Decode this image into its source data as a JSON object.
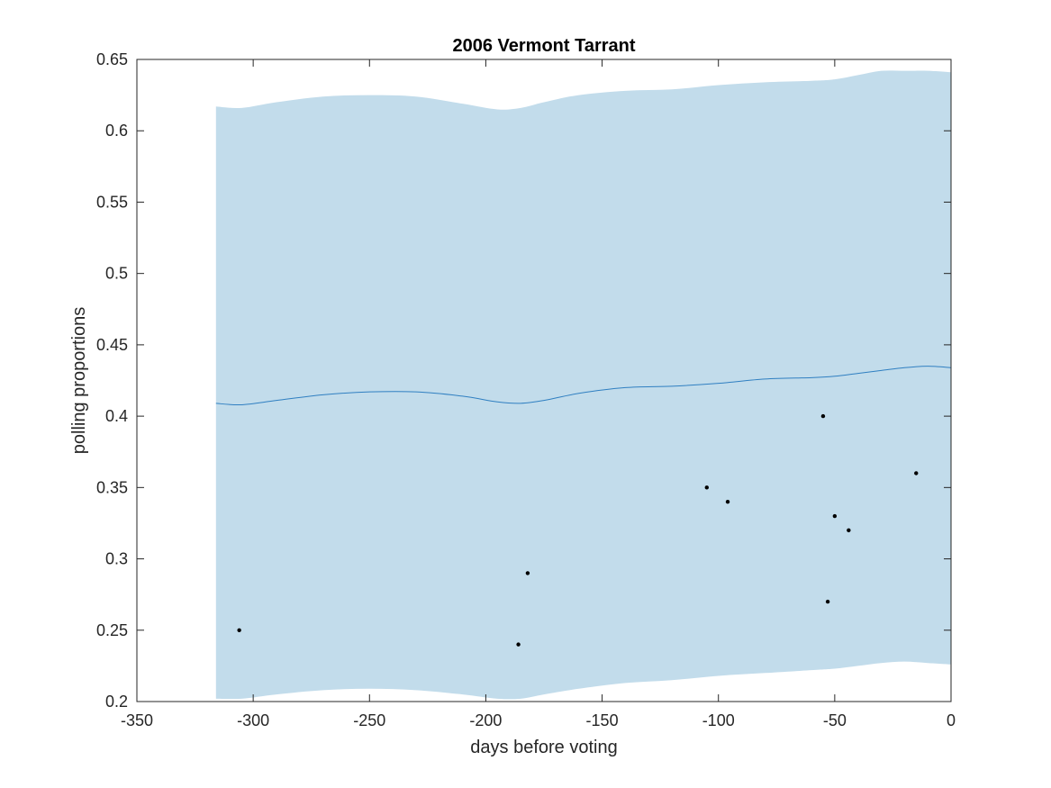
{
  "chart_data": {
    "type": "line",
    "title": "2006 Vermont Tarrant",
    "xlabel": "days before voting",
    "ylabel": "polling proportions",
    "xlim": [
      -350,
      0
    ],
    "ylim": [
      0.2,
      0.65
    ],
    "xticks": [
      -350,
      -300,
      -250,
      -200,
      -150,
      -100,
      -50,
      0
    ],
    "xtick_labels": [
      "-350",
      "-300",
      "-250",
      "-200",
      "-150",
      "-100",
      "-50",
      "0"
    ],
    "yticks": [
      0.2,
      0.25,
      0.3,
      0.35,
      0.4,
      0.45,
      0.5,
      0.55,
      0.6,
      0.65
    ],
    "ytick_labels": [
      "0.2",
      "0.25",
      "0.3",
      "0.35",
      "0.4",
      "0.45",
      "0.5",
      "0.55",
      "0.6",
      "0.65"
    ],
    "grid": false,
    "colors": {
      "band": "#c2dceb",
      "mean_line": "#2f7fc1",
      "points": "#000000",
      "axes": "#262626"
    },
    "band": {
      "x": [
        -316,
        -305,
        -290,
        -270,
        -250,
        -230,
        -210,
        -195,
        -185,
        -175,
        -160,
        -140,
        -120,
        -100,
        -80,
        -60,
        -50,
        -40,
        -30,
        -20,
        -10,
        0
      ],
      "upper": [
        0.617,
        0.616,
        0.62,
        0.624,
        0.625,
        0.624,
        0.619,
        0.615,
        0.616,
        0.62,
        0.625,
        0.628,
        0.629,
        0.632,
        0.634,
        0.635,
        0.636,
        0.639,
        0.642,
        0.642,
        0.642,
        0.641
      ],
      "lower": [
        0.202,
        0.202,
        0.205,
        0.208,
        0.209,
        0.208,
        0.205,
        0.202,
        0.202,
        0.205,
        0.209,
        0.213,
        0.215,
        0.218,
        0.22,
        0.222,
        0.223,
        0.225,
        0.227,
        0.228,
        0.227,
        0.226
      ]
    },
    "series": [
      {
        "type": "line",
        "x": [
          -316,
          -305,
          -290,
          -270,
          -250,
          -230,
          -210,
          -195,
          -185,
          -175,
          -160,
          -140,
          -120,
          -100,
          -80,
          -60,
          -50,
          -40,
          -30,
          -20,
          -10,
          0
        ],
        "y": [
          0.409,
          0.408,
          0.411,
          0.415,
          0.417,
          0.417,
          0.414,
          0.41,
          0.409,
          0.411,
          0.416,
          0.42,
          0.421,
          0.423,
          0.426,
          0.427,
          0.428,
          0.43,
          0.432,
          0.434,
          0.435,
          0.434
        ]
      },
      {
        "type": "scatter",
        "x": [
          -306,
          -186,
          -182,
          -105,
          -96,
          -55,
          -53,
          -50,
          -44,
          -15
        ],
        "y": [
          0.25,
          0.24,
          0.29,
          0.35,
          0.34,
          0.4,
          0.27,
          0.33,
          0.32,
          0.36
        ]
      }
    ]
  }
}
